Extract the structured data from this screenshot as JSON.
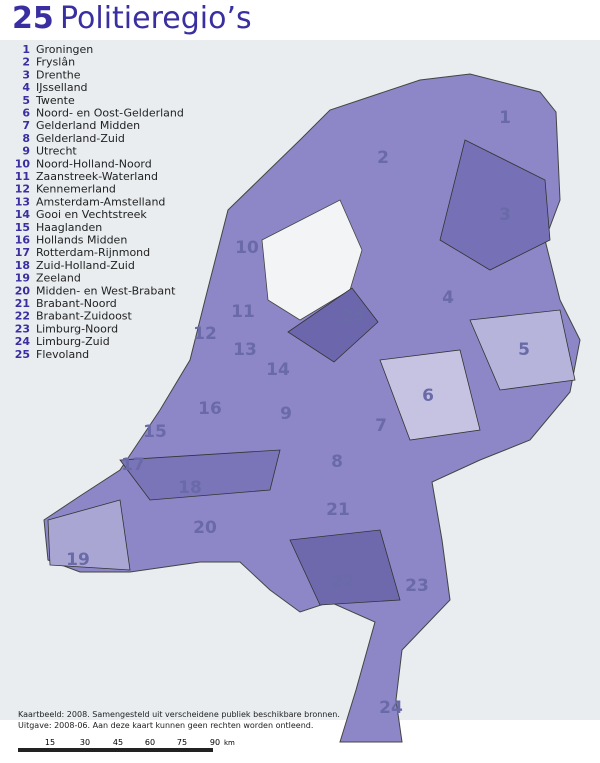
{
  "title": {
    "number": "25",
    "text": "Politieregio’s"
  },
  "regions": [
    {
      "number": "1",
      "name": "Groningen"
    },
    {
      "number": "2",
      "name": "Fryslân"
    },
    {
      "number": "3",
      "name": "Drenthe"
    },
    {
      "number": "4",
      "name": "IJsselland"
    },
    {
      "number": "5",
      "name": "Twente"
    },
    {
      "number": "6",
      "name": "Noord- en Oost-Gelderland"
    },
    {
      "number": "7",
      "name": "Gelderland Midden"
    },
    {
      "number": "8",
      "name": "Gelderland-Zuid"
    },
    {
      "number": "9",
      "name": "Utrecht"
    },
    {
      "number": "10",
      "name": "Noord-Holland-Noord"
    },
    {
      "number": "11",
      "name": "Zaanstreek-Waterland"
    },
    {
      "number": "12",
      "name": "Kennemerland"
    },
    {
      "number": "13",
      "name": "Amsterdam-Amstelland"
    },
    {
      "number": "14",
      "name": "Gooi en Vechtstreek"
    },
    {
      "number": "15",
      "name": "Haaglanden"
    },
    {
      "number": "16",
      "name": "Hollands Midden"
    },
    {
      "number": "17",
      "name": "Rotterdam-Rijnmond"
    },
    {
      "number": "18",
      "name": "Zuid-Holland-Zuid"
    },
    {
      "number": "19",
      "name": "Zeeland"
    },
    {
      "number": "20",
      "name": "Midden- en West-Brabant"
    },
    {
      "number": "21",
      "name": "Brabant-Noord"
    },
    {
      "number": "22",
      "name": "Brabant-Zuidoost"
    },
    {
      "number": "23",
      "name": "Limburg-Noord"
    },
    {
      "number": "24",
      "name": "Limburg-Zuid"
    },
    {
      "number": "25",
      "name": "Flevoland"
    }
  ],
  "footer": {
    "line1": "Kaartbeeld: 2008. Samengesteld uit verscheidene publiek beschikbare bronnen.",
    "line2": "Uitgave: 2008-06. Aan deze kaart kunnen geen rechten worden ontleend."
  },
  "scale": {
    "labels": [
      "15",
      "30",
      "45",
      "60",
      "75",
      "90"
    ],
    "unit": "km"
  }
}
